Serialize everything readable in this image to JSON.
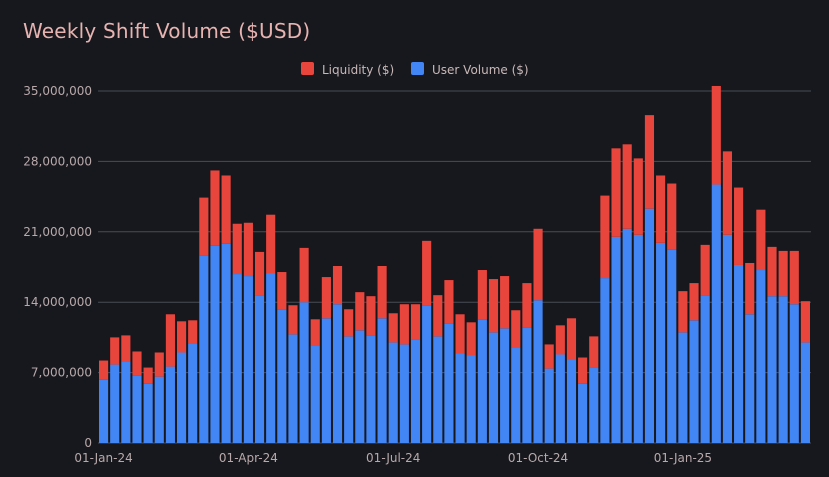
{
  "chart_data": {
    "type": "bar",
    "stacked": true,
    "title": "Weekly Shift Volume ($USD)",
    "xlabel": "",
    "ylabel": "",
    "ylim": [
      0,
      35000000
    ],
    "yticks": [
      0,
      7000000,
      14000000,
      21000000,
      28000000,
      35000000
    ],
    "ytick_labels": [
      "0",
      "7,000,000",
      "14,000,000",
      "21,000,000",
      "28,000,000",
      "35,000,000"
    ],
    "grid": true,
    "legend_position": "top-center",
    "x_tick_labels": [
      {
        "label": "01-Jan-24",
        "index": 0
      },
      {
        "label": "01-Apr-24",
        "index": 13
      },
      {
        "label": "01-Jul-24",
        "index": 26
      },
      {
        "label": "01-Oct-24",
        "index": 39
      },
      {
        "label": "01-Jan-25",
        "index": 52
      }
    ],
    "series": [
      {
        "name": "User Volume ($)",
        "color": "#4285f4",
        "values": [
          6300000,
          7800000,
          8100000,
          6700000,
          5900000,
          6600000,
          7600000,
          9000000,
          9900000,
          18600000,
          19600000,
          19800000,
          16800000,
          16600000,
          14700000,
          16900000,
          13300000,
          10800000,
          14000000,
          9700000,
          12400000,
          13800000,
          10600000,
          11200000,
          10700000,
          12400000,
          10000000,
          9800000,
          10300000,
          13700000,
          10600000,
          11900000,
          8900000,
          8700000,
          12300000,
          11000000,
          11400000,
          9500000,
          11500000,
          14200000,
          7400000,
          8800000,
          8300000,
          5900000,
          7500000,
          16400000,
          20500000,
          21300000,
          20700000,
          23300000,
          19900000,
          19200000,
          11000000,
          12200000,
          14700000,
          25700000,
          20700000,
          17700000,
          12800000,
          17200000,
          14600000,
          14600000,
          13800000,
          10000000
        ],
        "totals": [
          8200000,
          10500000,
          10700000,
          9100000,
          7500000,
          9000000,
          12800000,
          12100000,
          12200000,
          24400000,
          27100000,
          26600000,
          21800000,
          21900000,
          19000000,
          22700000,
          17000000,
          13700000,
          19400000,
          12300000,
          16500000,
          17600000,
          13300000,
          15000000,
          14600000,
          17600000,
          12900000,
          13800000,
          13800000,
          20100000,
          14700000,
          16200000,
          12800000,
          12000000,
          17200000,
          16300000,
          16600000,
          13200000,
          15900000,
          21300000,
          9800000,
          11700000,
          12400000,
          8500000,
          10600000,
          24600000,
          29300000,
          29700000,
          28300000,
          32600000,
          26600000,
          25800000,
          15100000,
          15900000,
          19700000,
          35500000,
          29000000,
          25400000,
          17900000,
          23200000,
          19500000,
          19100000,
          19100000,
          14100000
        ]
      },
      {
        "name": "Liquidity ($)",
        "color": "#e8453c",
        "values": [
          1900000,
          2700000,
          2600000,
          2400000,
          1600000,
          2400000,
          5200000,
          3100000,
          2300000,
          5800000,
          7500000,
          6800000,
          5000000,
          5300000,
          4300000,
          5800000,
          3700000,
          2900000,
          5400000,
          2600000,
          4100000,
          3800000,
          2700000,
          3800000,
          3900000,
          5200000,
          2900000,
          4000000,
          3500000,
          6400000,
          4100000,
          4300000,
          3900000,
          3300000,
          4900000,
          5300000,
          5200000,
          3700000,
          4400000,
          7100000,
          2400000,
          2900000,
          4100000,
          2600000,
          3100000,
          8200000,
          8800000,
          8400000,
          7600000,
          9300000,
          6700000,
          6600000,
          4100000,
          3700000,
          5000000,
          9800000,
          8300000,
          7700000,
          5100000,
          6000000,
          4900000,
          4500000,
          5300000,
          4100000
        ]
      }
    ]
  }
}
